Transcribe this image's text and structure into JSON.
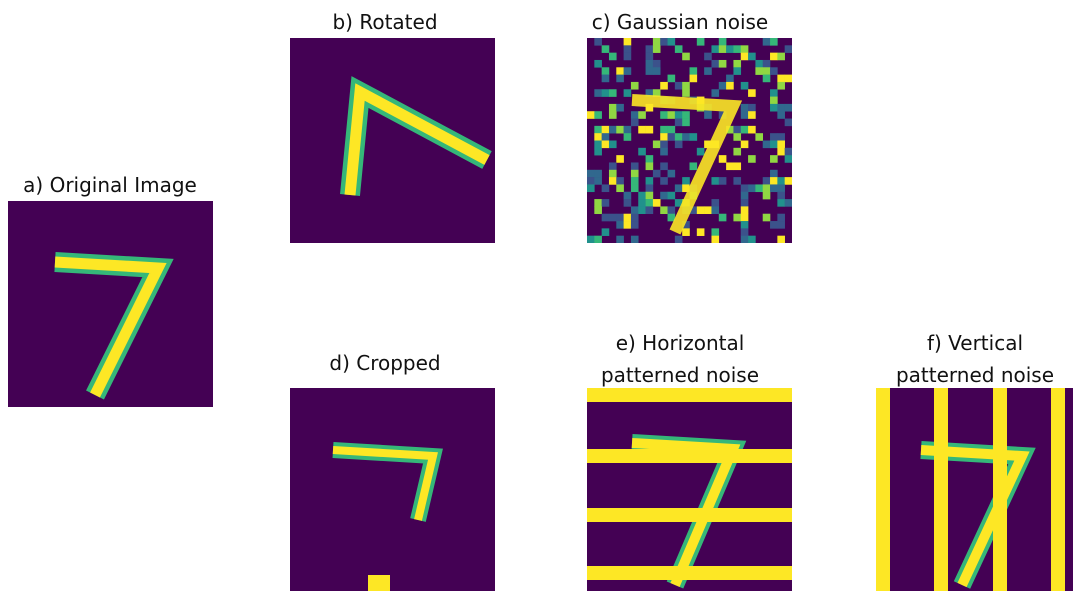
{
  "panels": [
    {
      "title": [
        "a) Original Image"
      ]
    },
    {
      "title": [
        "b) Rotated"
      ]
    },
    {
      "title": [
        "c) Gaussian noise"
      ]
    },
    {
      "title": [
        "d) Cropped"
      ]
    },
    {
      "title": [
        "e) Horizontal",
        "patterned noise"
      ]
    },
    {
      "title": [
        "f) Vertical",
        "patterned noise"
      ]
    }
  ]
}
